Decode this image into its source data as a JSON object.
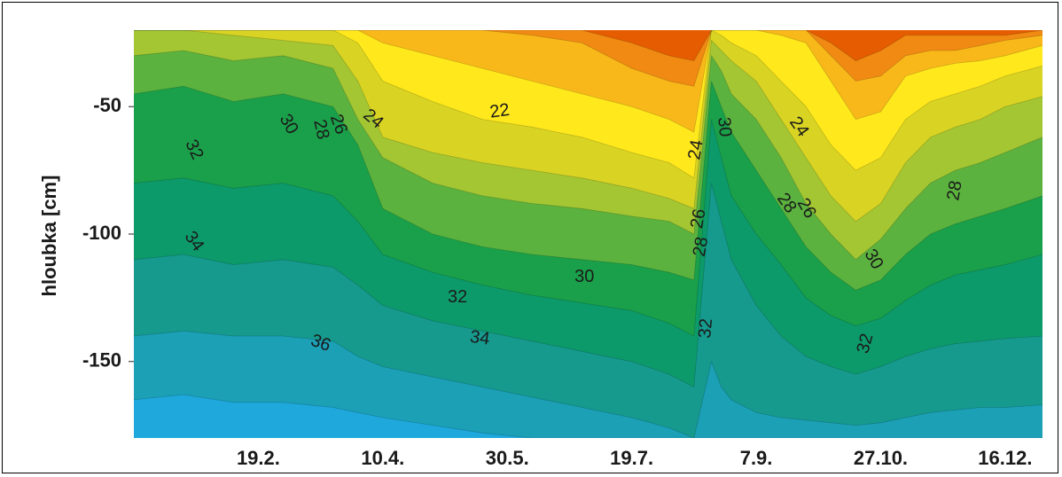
{
  "chart_data": {
    "type": "heatmap",
    "subtype": "contour",
    "title": "",
    "xlabel": "",
    "ylabel": "hloubka [cm]",
    "ylim": [
      -180,
      -20
    ],
    "y_ticks": [
      {
        "value": -50,
        "label": "-50"
      },
      {
        "value": -100,
        "label": "-100"
      },
      {
        "value": -150,
        "label": "-150"
      }
    ],
    "x_range_days": [
      0,
      365
    ],
    "x_ticks": [
      {
        "day": 50,
        "label": "19.2."
      },
      {
        "day": 100,
        "label": "10.4."
      },
      {
        "day": 150,
        "label": "30.5."
      },
      {
        "day": 200,
        "label": "19.7."
      },
      {
        "day": 250,
        "label": "7.9."
      },
      {
        "day": 300,
        "label": "27.10."
      },
      {
        "day": 350,
        "label": "16.12."
      }
    ],
    "contour_levels": [
      20,
      22,
      24,
      26,
      28,
      30,
      32,
      34,
      36
    ],
    "level_colors": [
      "#e65c00",
      "#f08a12",
      "#f9b81a",
      "#ffe81c",
      "#d9d423",
      "#a3c632",
      "#5bb23e",
      "#1aa04a",
      "#0d9a6a",
      "#169a8e",
      "#1ba0b6",
      "#1ea8dc"
    ],
    "contour_labels": [
      {
        "text": "32",
        "day": 24,
        "depth": -67,
        "angle": 65
      },
      {
        "text": "34",
        "day": 24,
        "depth": -103,
        "angle": 55
      },
      {
        "text": "30",
        "day": 62,
        "depth": -57,
        "angle": 60
      },
      {
        "text": "28",
        "day": 75,
        "depth": -59,
        "angle": 78
      },
      {
        "text": "26",
        "day": 82,
        "depth": -57,
        "angle": 70
      },
      {
        "text": "24",
        "day": 96,
        "depth": -55,
        "angle": 40
      },
      {
        "text": "22",
        "day": 147,
        "depth": -52,
        "angle": -8
      },
      {
        "text": "24",
        "day": 226,
        "depth": -67,
        "angle": -80
      },
      {
        "text": "30",
        "day": 237,
        "depth": -58,
        "angle": 85
      },
      {
        "text": "26",
        "day": 227,
        "depth": -94,
        "angle": -80
      },
      {
        "text": "28",
        "day": 228,
        "depth": -105,
        "angle": -80
      },
      {
        "text": "32",
        "day": 230,
        "depth": -137,
        "angle": -85
      },
      {
        "text": "24",
        "day": 267,
        "depth": -58,
        "angle": 55
      },
      {
        "text": "26",
        "day": 270,
        "depth": -90,
        "angle": 60
      },
      {
        "text": "28",
        "day": 262,
        "depth": -88,
        "angle": 55
      },
      {
        "text": "30",
        "day": 297,
        "depth": -110,
        "angle": 60
      },
      {
        "text": "32",
        "day": 294,
        "depth": -143,
        "angle": -75
      },
      {
        "text": "28",
        "day": 330,
        "depth": -83,
        "angle": -80
      },
      {
        "text": "30",
        "day": 181,
        "depth": -117,
        "angle": 0
      },
      {
        "text": "32",
        "day": 130,
        "depth": -125,
        "angle": 0
      },
      {
        "text": "34",
        "day": 139,
        "depth": -141,
        "angle": 8
      },
      {
        "text": "36",
        "day": 75,
        "depth": -143,
        "angle": 20
      }
    ],
    "isolines": {
      "days": [
        0,
        20,
        40,
        60,
        80,
        90,
        100,
        120,
        140,
        160,
        180,
        200,
        215,
        225,
        232,
        236,
        240,
        250,
        260,
        270,
        280,
        290,
        300,
        310,
        320,
        330,
        340,
        350,
        365
      ],
      "levels": [
        {
          "level": 20,
          "depth": [
            -20,
            -20,
            -20,
            -20,
            -20,
            -20,
            -20,
            -20,
            -20,
            -20,
            -20,
            -25,
            -30,
            -32,
            -20,
            -20,
            -20,
            -20,
            -20,
            -20,
            -25,
            -32,
            -28,
            -22,
            -22,
            -22,
            -22,
            -22,
            -20
          ]
        },
        {
          "level": 22,
          "depth": [
            -20,
            -20,
            -20,
            -20,
            -20,
            -20,
            -20,
            -20,
            -20,
            -22,
            -25,
            -35,
            -40,
            -42,
            -20,
            -20,
            -20,
            -20,
            -20,
            -20,
            -30,
            -40,
            -38,
            -30,
            -28,
            -28,
            -26,
            -24,
            -22
          ]
        },
        {
          "level": 24,
          "depth": [
            -20,
            -20,
            -20,
            -20,
            -20,
            -20,
            -25,
            -30,
            -35,
            -40,
            -45,
            -50,
            -55,
            -60,
            -20,
            -20,
            -20,
            -20,
            -22,
            -25,
            -40,
            -55,
            -52,
            -38,
            -35,
            -33,
            -32,
            -30,
            -26
          ]
        },
        {
          "level": 26,
          "depth": [
            -20,
            -20,
            -20,
            -20,
            -20,
            -25,
            -40,
            -48,
            -55,
            -58,
            -62,
            -68,
            -72,
            -78,
            -20,
            -22,
            -25,
            -30,
            -40,
            -50,
            -65,
            -75,
            -70,
            -55,
            -48,
            -45,
            -42,
            -38,
            -34
          ]
        },
        {
          "level": 28,
          "depth": [
            -20,
            -20,
            -22,
            -24,
            -26,
            -40,
            -62,
            -68,
            -72,
            -75,
            -78,
            -82,
            -86,
            -90,
            -24,
            -28,
            -32,
            -40,
            -55,
            -70,
            -85,
            -95,
            -88,
            -72,
            -62,
            -58,
            -55,
            -50,
            -46
          ]
        },
        {
          "level": 30,
          "depth": [
            -30,
            -28,
            -32,
            -30,
            -35,
            -55,
            -70,
            -80,
            -85,
            -88,
            -90,
            -93,
            -95,
            -100,
            -30,
            -36,
            -45,
            -55,
            -70,
            -88,
            -100,
            -110,
            -102,
            -90,
            -80,
            -75,
            -72,
            -68,
            -62
          ]
        },
        {
          "level": 32,
          "depth": [
            -45,
            -42,
            -48,
            -45,
            -50,
            -65,
            -90,
            -100,
            -105,
            -108,
            -110,
            -112,
            -115,
            -118,
            -40,
            -50,
            -60,
            -75,
            -90,
            -105,
            -115,
            -122,
            -118,
            -108,
            -100,
            -96,
            -93,
            -90,
            -85
          ]
        },
        {
          "level": 34,
          "depth": [
            -80,
            -78,
            -82,
            -80,
            -85,
            -95,
            -108,
            -115,
            -120,
            -124,
            -127,
            -130,
            -135,
            -140,
            -55,
            -70,
            -85,
            -100,
            -112,
            -125,
            -132,
            -136,
            -133,
            -126,
            -120,
            -116,
            -114,
            -112,
            -108
          ]
        },
        {
          "level": 36,
          "depth": [
            -110,
            -108,
            -112,
            -110,
            -113,
            -120,
            -128,
            -134,
            -138,
            -142,
            -146,
            -150,
            -155,
            -160,
            -80,
            -95,
            -110,
            -128,
            -140,
            -148,
            -152,
            -155,
            -152,
            -148,
            -145,
            -143,
            -142,
            -141,
            -140
          ]
        },
        {
          "level": 38,
          "depth": [
            -140,
            -138,
            -140,
            -140,
            -142,
            -148,
            -152,
            -156,
            -160,
            -164,
            -168,
            -172,
            -176,
            -180,
            -150,
            -160,
            -165,
            -170,
            -172,
            -173,
            -174,
            -175,
            -174,
            -172,
            -170,
            -169,
            -168,
            -168,
            -167
          ]
        },
        {
          "level": 40,
          "depth": [
            -165,
            -163,
            -166,
            -166,
            -168,
            -170,
            -172,
            -175,
            -178,
            -180,
            -180,
            -180,
            -180,
            -180,
            -180,
            -180,
            -180,
            -180,
            -180,
            -180,
            -180,
            -180,
            -180,
            -180,
            -180,
            -180,
            -180,
            -180,
            -180
          ]
        }
      ]
    }
  }
}
